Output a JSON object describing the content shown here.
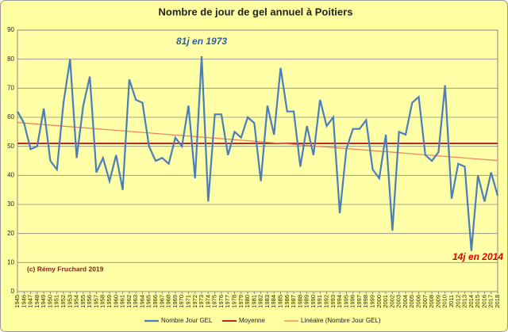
{
  "chart_data": {
    "type": "line",
    "title": "Nombre de jour de gel annuel à Poitiers",
    "categories": [
      "1945",
      "1946",
      "1947",
      "1948",
      "1949",
      "1950",
      "1951",
      "1952",
      "1953",
      "1954",
      "1955",
      "1956",
      "1957",
      "1958",
      "1959",
      "1960",
      "1961",
      "1962",
      "1963",
      "1964",
      "1965",
      "1966",
      "1967",
      "1968",
      "1969",
      "1970",
      "1971",
      "1972",
      "1973",
      "1974",
      "1975",
      "1976",
      "1977",
      "1978",
      "1979",
      "1980",
      "1981",
      "1982",
      "1983",
      "1984",
      "1985",
      "1986",
      "1987",
      "1988",
      "1989",
      "1990",
      "1991",
      "1992",
      "1993",
      "1994",
      "1995",
      "1996",
      "1997",
      "1998",
      "1999",
      "2000",
      "2001",
      "2002",
      "2003",
      "2004",
      "2005",
      "2006",
      "2007",
      "2008",
      "2009",
      "2010",
      "2011",
      "2012",
      "2013",
      "2014",
      "2015",
      "2016",
      "2017",
      "2018"
    ],
    "series": [
      {
        "name": "Nombre Jour GEL",
        "color": "#4a7ebb",
        "values": [
          62,
          58,
          49,
          50,
          63,
          45,
          42,
          65,
          80,
          46,
          64,
          74,
          41,
          46,
          38,
          47,
          35,
          73,
          66,
          65,
          50,
          45,
          46,
          44,
          53,
          50,
          64,
          39,
          81,
          31,
          61,
          61,
          47,
          55,
          53,
          60,
          58,
          38,
          64,
          54,
          77,
          62,
          62,
          43,
          57,
          47,
          66,
          57,
          60,
          27,
          49,
          56,
          56,
          59,
          42,
          39,
          54,
          21,
          55,
          54,
          65,
          67,
          47,
          45,
          48,
          71,
          32,
          44,
          43,
          14,
          40,
          31,
          41,
          33
        ]
      }
    ],
    "reference_lines": [
      {
        "name": "Moyenne",
        "color": "#c0272d",
        "from": 51,
        "to": 51
      },
      {
        "name": "Linéaire (Nombre Jour GEL)",
        "color": "#f07c5a",
        "from": 58.2,
        "to": 45.1
      }
    ],
    "annotations": [
      {
        "text": "81j en 1973",
        "color": "#2e5e9e"
      },
      {
        "text": "14j en 2014",
        "color": "#e00000"
      },
      {
        "text": "(c) Rémy Fruchard 2019",
        "color": "#8b1a1a"
      }
    ],
    "ylim": [
      0,
      90
    ],
    "yticks": [
      0,
      10,
      20,
      30,
      40,
      50,
      60,
      70,
      80,
      90
    ],
    "grid": true,
    "legend": "bottom"
  }
}
